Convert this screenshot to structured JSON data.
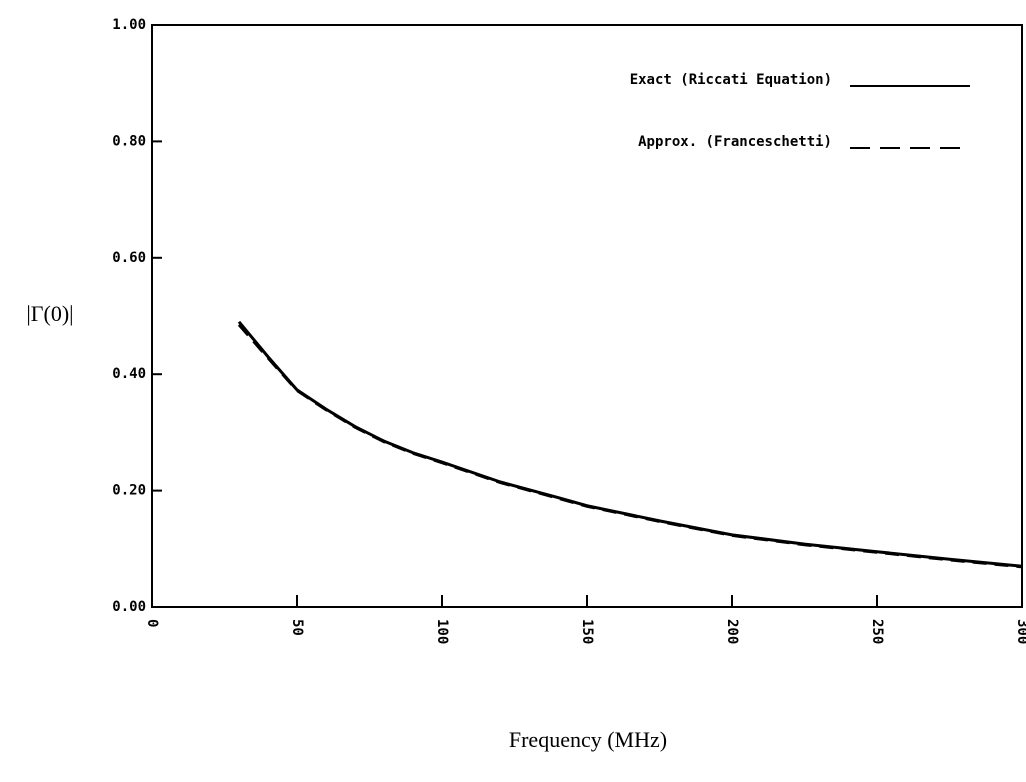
{
  "chart_data": {
    "type": "line",
    "x_label": "Frequency (MHz)",
    "y_label": "|Γ(0)|",
    "x": [
      30,
      40,
      50,
      60,
      70,
      80,
      90,
      100,
      120,
      140,
      150,
      175,
      200,
      225,
      250,
      275,
      300
    ],
    "series": [
      {
        "name": "Exact (Riccati Equation)",
        "color": "#000000",
        "dash": "solid",
        "values": [
          0.49,
          0.43,
          0.373,
          0.34,
          0.31,
          0.285,
          0.265,
          0.249,
          0.215,
          0.188,
          0.174,
          0.148,
          0.124,
          0.108,
          0.095,
          0.082,
          0.07
        ]
      },
      {
        "name": "Approx. (Franceschetti)",
        "color": "#000000",
        "dash": "dashed",
        "values": [
          0.485,
          0.428,
          0.372,
          0.339,
          0.309,
          0.284,
          0.264,
          0.248,
          0.214,
          0.187,
          0.173,
          0.147,
          0.123,
          0.107,
          0.094,
          0.081,
          0.069
        ]
      }
    ],
    "xlim": [
      0,
      300
    ],
    "xticks": [
      0,
      50,
      100,
      150,
      200,
      250,
      300
    ],
    "ylim": [
      0,
      1
    ],
    "yticks": [
      {
        "value": 0,
        "label": "0.00"
      },
      {
        "value": 0.2,
        "label": "0.20"
      },
      {
        "value": 0.4,
        "label": "0.40"
      },
      {
        "value": 0.6,
        "label": "0.60"
      },
      {
        "value": 0.8,
        "label": "0.80"
      },
      {
        "value": 1,
        "label": "1.00"
      }
    ],
    "grid": false,
    "legend": "top-right"
  }
}
